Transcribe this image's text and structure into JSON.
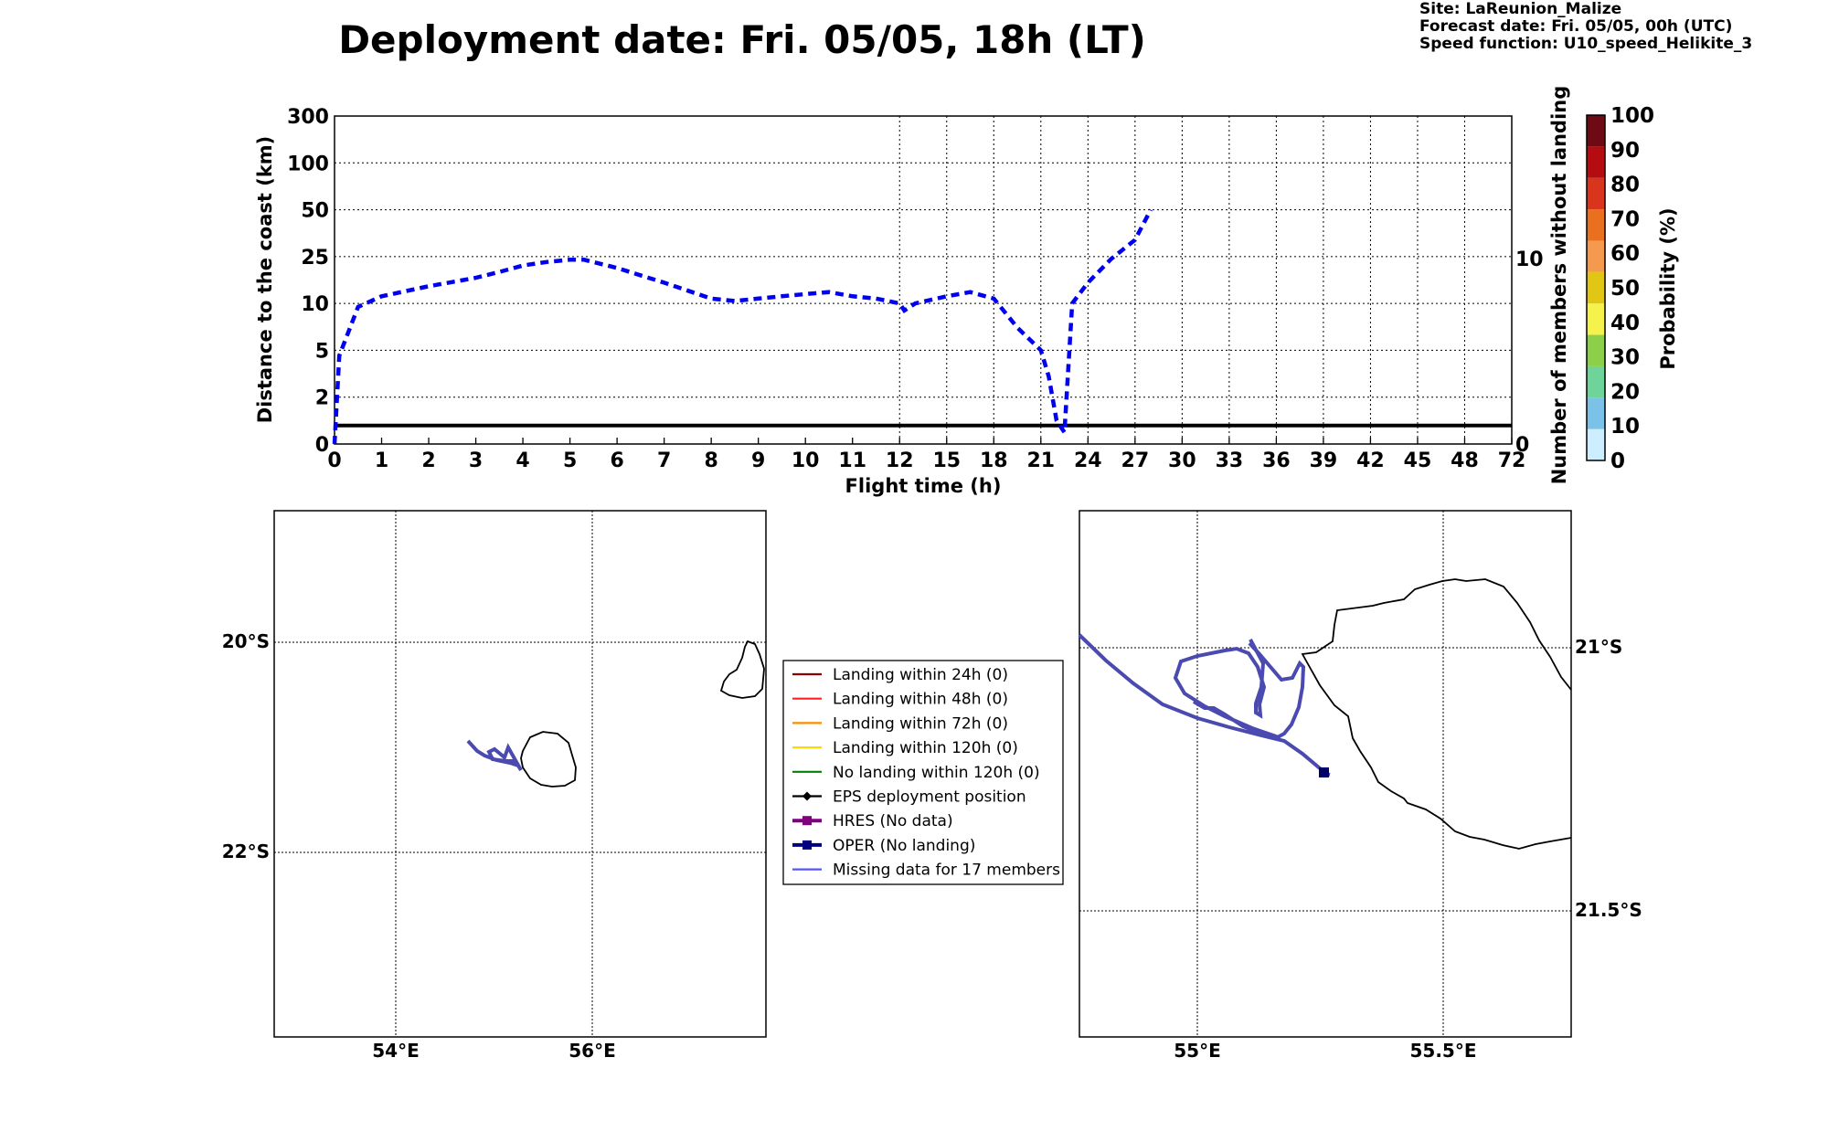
{
  "title": "Deployment date: Fri. 05/05, 18h (LT)",
  "site_info": {
    "site": "Site: LaReunion_Malize",
    "forecast": "Forecast date: Fri. 05/05, 00h (UTC)",
    "speed": "Speed function: U10_speed_Helikite_3"
  },
  "chart_data": [
    {
      "type": "line",
      "name": "distance-plot",
      "xlabel": "Flight time (h)",
      "ylabel": "Distance to the coast (km)",
      "ylabel_right": "Number of members without landing",
      "x_ticks": [
        "0",
        "1",
        "2",
        "3",
        "4",
        "5",
        "6",
        "7",
        "8",
        "9",
        "10",
        "11",
        "12",
        "15",
        "18",
        "21",
        "24",
        "27",
        "30",
        "33",
        "36",
        "39",
        "42",
        "45",
        "48",
        "72"
      ],
      "y_ticks": [
        "0",
        "2",
        "5",
        "10",
        "25",
        "50",
        "100",
        "300"
      ],
      "y_right_ticks": [
        "0",
        "10"
      ],
      "grid": true,
      "members_without_landing": 1,
      "series": [
        {
          "style": "dashed",
          "color": "#0000ee",
          "x": [
            0,
            0.1,
            0.5,
            1,
            2,
            3,
            3.5,
            4,
            4.5,
            5,
            5.3,
            6,
            7,
            8,
            8.5,
            9,
            9.5,
            10,
            10.5,
            11,
            11.5,
            12,
            12.3,
            13,
            15,
            16.5,
            18,
            19.5,
            21,
            21.5,
            22,
            22.5,
            23,
            24,
            25.5,
            27,
            28
          ],
          "y": [
            0,
            4.5,
            9.5,
            11.5,
            14,
            16.5,
            18.5,
            21,
            22.5,
            23.5,
            23.5,
            20,
            15,
            11,
            10.5,
            11,
            11.5,
            12,
            12.5,
            11.5,
            11,
            10,
            9,
            10,
            11.5,
            12.5,
            11,
            7,
            5,
            3,
            1,
            0.5,
            10,
            15,
            24,
            32,
            50
          ]
        }
      ],
      "colorbar": {
        "label": "Probability (%)",
        "ticks": [
          "0",
          "10",
          "20",
          "30",
          "40",
          "50",
          "60",
          "70",
          "80",
          "90",
          "100"
        ],
        "colors": [
          "#cdeeff",
          "#7cc2e8",
          "#6fd49a",
          "#8bd048",
          "#f6f24c",
          "#e2c615",
          "#f39a4f",
          "#e8701f",
          "#d9341c",
          "#b40c10",
          "#6e0a14"
        ]
      }
    },
    {
      "type": "map",
      "name": "overview-map",
      "lon_ticks": [
        "54°E",
        "56°E"
      ],
      "lat_ticks": [
        "20°S",
        "22°S"
      ],
      "extent": {
        "lon": [
          52.75,
          57.75
        ],
        "lat": [
          -19.0,
          -24.0
        ]
      },
      "track_color": "#4a4ab0"
    },
    {
      "type": "map",
      "name": "zoom-map",
      "lon_ticks": [
        "55°E",
        "55.5°E"
      ],
      "lat_ticks": [
        "21°S",
        "21.5°S"
      ],
      "extent": {
        "lon": [
          54.75,
          55.8
        ],
        "lat": [
          -20.75,
          -21.75
        ]
      },
      "track_color": "#4a4ab0",
      "end_marker_color": "#000066"
    }
  ],
  "legend": [
    {
      "label": "Landing within 24h (0)",
      "color": "#8b0000",
      "marker": "none"
    },
    {
      "label": "Landing within 48h (0)",
      "color": "#ff2020",
      "marker": "none"
    },
    {
      "label": "Landing within 72h (0)",
      "color": "#ff8c00",
      "marker": "none"
    },
    {
      "label": "Landing within 120h (0)",
      "color": "#ffd700",
      "marker": "none"
    },
    {
      "label": "No landing within 120h (0)",
      "color": "#008000",
      "marker": "none"
    },
    {
      "label": "EPS deployment position",
      "color": "#000000",
      "marker": "diamond"
    },
    {
      "label": "HRES (No data)",
      "color": "#800080",
      "marker": "square"
    },
    {
      "label": "OPER (No landing)",
      "color": "#000080",
      "marker": "square"
    },
    {
      "label": "Missing data for 17 members",
      "color": "#5555ff",
      "marker": "none"
    }
  ]
}
